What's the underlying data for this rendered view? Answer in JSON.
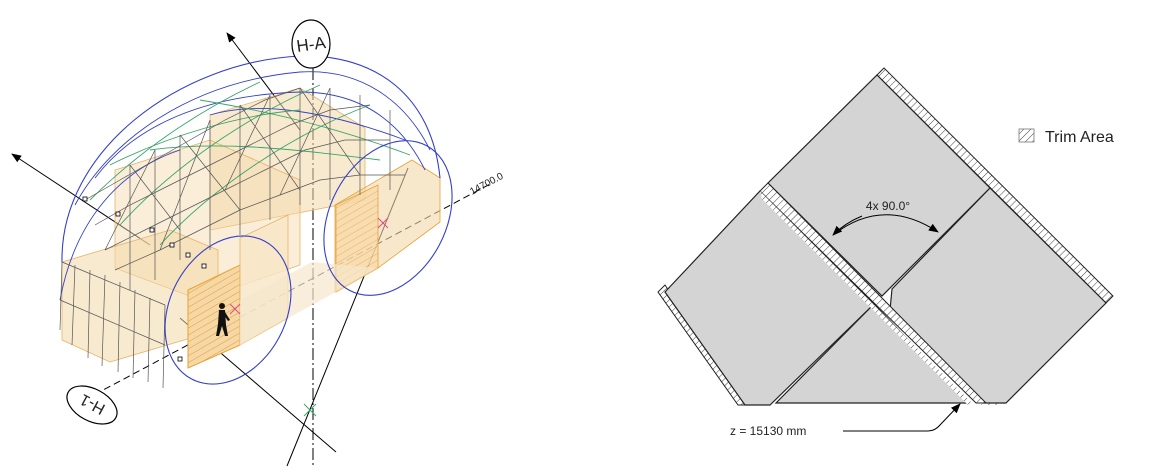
{
  "left_view": {
    "axis_top_label": "H-A",
    "axis_bottom_label": "H-1",
    "dimension_label": "14700.0"
  },
  "right_view": {
    "legend_label": "Trim Area",
    "angle_label": "4x 90.0°",
    "z_label": "z = 15130 mm"
  },
  "colors": {
    "shell_blue": "#3340c8",
    "shell_green": "#3aa66a",
    "frame": "#555555",
    "volume_fill": "#f3d9a8",
    "volume_edge": "#e6a23a",
    "panel_fill": "#d4d4d4",
    "panel_edge": "#222222"
  }
}
